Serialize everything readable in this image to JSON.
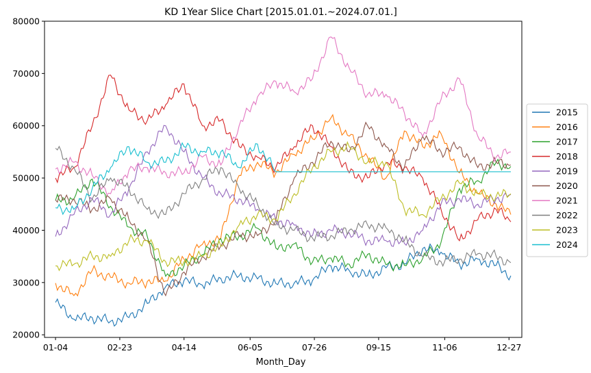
{
  "chart_data": {
    "type": "line",
    "title": "KD 1Year Slice Chart [2015.01.01.~2024.07.01.]",
    "xlabel": "Month_Day",
    "ylabel": "",
    "x_ticks": [
      "01-04",
      "02-23",
      "04-14",
      "06-05",
      "07-26",
      "09-15",
      "11-06",
      "12-27"
    ],
    "x_tick_index": [
      0,
      35,
      70,
      106,
      141,
      176,
      212,
      247
    ],
    "xlim": [
      -6,
      254
    ],
    "ylim": [
      19500,
      80000
    ],
    "y_ticks": [
      20000,
      30000,
      40000,
      50000,
      60000,
      70000,
      80000
    ],
    "legend_position": "center-right",
    "grid": false,
    "series": [
      {
        "name": "2015",
        "color": "#1f77b4",
        "x": [
          0,
          10,
          20,
          30,
          40,
          50,
          60,
          70,
          80,
          90,
          100,
          110,
          120,
          130,
          140,
          150,
          160,
          170,
          180,
          190,
          200,
          210,
          220,
          230,
          240,
          248
        ],
        "values": [
          26200,
          23000,
          23300,
          22600,
          23300,
          26000,
          29200,
          30400,
          29500,
          30800,
          31300,
          30700,
          29800,
          29900,
          30400,
          33200,
          32300,
          31300,
          32800,
          33600,
          36500,
          35800,
          33500,
          34500,
          33300,
          31300
        ]
      },
      {
        "name": "2016",
        "color": "#ff7f0e",
        "x": [
          0,
          10,
          20,
          30,
          40,
          50,
          60,
          70,
          80,
          90,
          100,
          110,
          120,
          130,
          140,
          150,
          160,
          170,
          180,
          190,
          200,
          210,
          220,
          230,
          240,
          248
        ],
        "values": [
          29900,
          27500,
          32300,
          31000,
          29900,
          30200,
          30300,
          34500,
          37300,
          38500,
          50500,
          53000,
          51000,
          54500,
          57500,
          61500,
          58000,
          54000,
          50000,
          59000,
          56000,
          58500,
          51000,
          47000,
          45000,
          43000
        ]
      },
      {
        "name": "2017",
        "color": "#2ca02c",
        "x": [
          0,
          10,
          20,
          30,
          40,
          50,
          60,
          70,
          80,
          90,
          100,
          110,
          120,
          130,
          140,
          150,
          160,
          170,
          180,
          190,
          200,
          210,
          220,
          230,
          240,
          248
        ],
        "values": [
          45700,
          46000,
          49800,
          44600,
          40600,
          38800,
          31200,
          33200,
          35300,
          38400,
          38900,
          40400,
          36600,
          37400,
          33900,
          34700,
          33500,
          35400,
          33400,
          33300,
          34600,
          37700,
          48000,
          49500,
          53000,
          52200
        ]
      },
      {
        "name": "2018",
        "color": "#d62728",
        "x": [
          0,
          10,
          20,
          30,
          40,
          50,
          60,
          70,
          80,
          90,
          100,
          110,
          120,
          130,
          140,
          150,
          160,
          170,
          180,
          190,
          200,
          210,
          220,
          230,
          240,
          248
        ],
        "values": [
          50000,
          52000,
          60000,
          69700,
          63000,
          61000,
          64000,
          68000,
          60000,
          61000,
          56000,
          54000,
          52000,
          56000,
          60000,
          56000,
          51000,
          50000,
          53000,
          52000,
          50000,
          44000,
          38000,
          42000,
          44000,
          41600
        ]
      },
      {
        "name": "2019",
        "color": "#9467bd",
        "x": [
          0,
          10,
          20,
          30,
          40,
          50,
          60,
          70,
          80,
          90,
          100,
          110,
          120,
          130,
          140,
          150,
          160,
          170,
          180,
          190,
          200,
          210,
          220,
          230,
          240,
          248
        ],
        "values": [
          38800,
          43000,
          46000,
          43000,
          48000,
          55000,
          60000,
          55000,
          50000,
          47000,
          46000,
          44000,
          42000,
          41000,
          39000,
          40000,
          39500,
          38000,
          38000,
          37500,
          40000,
          45000,
          46000,
          45000,
          46000,
          46800
        ]
      },
      {
        "name": "2020",
        "color": "#8c564b",
        "x": [
          0,
          10,
          20,
          30,
          40,
          50,
          60,
          70,
          80,
          90,
          100,
          110,
          120,
          130,
          140,
          150,
          160,
          170,
          180,
          190,
          200,
          210,
          220,
          230,
          240,
          248
        ],
        "values": [
          45800,
          46000,
          44000,
          46000,
          42000,
          38000,
          27500,
          32000,
          35000,
          37000,
          39000,
          39000,
          42000,
          50000,
          53000,
          57000,
          55000,
          60000,
          56000,
          52000,
          58000,
          55000,
          56000,
          52000,
          53000,
          52500
        ]
      },
      {
        "name": "2021",
        "color": "#e377c2",
        "x": [
          0,
          10,
          20,
          30,
          40,
          50,
          60,
          70,
          80,
          90,
          100,
          110,
          120,
          130,
          140,
          150,
          160,
          170,
          180,
          190,
          200,
          210,
          220,
          230,
          240,
          248
        ],
        "values": [
          51700,
          53000,
          50500,
          47000,
          51500,
          52000,
          51000,
          51000,
          54000,
          52500,
          60000,
          65500,
          68500,
          66500,
          69000,
          77000,
          71000,
          66000,
          66000,
          62500,
          58000,
          65000,
          69000,
          58000,
          54000,
          55000
        ]
      },
      {
        "name": "2022",
        "color": "#7f7f7f",
        "x": [
          0,
          10,
          20,
          30,
          40,
          50,
          60,
          70,
          80,
          90,
          100,
          110,
          120,
          130,
          140,
          150,
          160,
          170,
          180,
          190,
          200,
          210,
          220,
          230,
          240,
          248
        ],
        "values": [
          55700,
          52000,
          46000,
          50000,
          48000,
          44000,
          43000,
          47000,
          49800,
          52000,
          48000,
          45000,
          41000,
          40000,
          38500,
          39000,
          40000,
          41000,
          40500,
          38000,
          35000,
          34000,
          34500,
          35500,
          35000,
          33800
        ]
      },
      {
        "name": "2023",
        "color": "#bcbd22",
        "x": [
          0,
          10,
          20,
          30,
          40,
          50,
          60,
          70,
          80,
          90,
          100,
          110,
          120,
          130,
          140,
          150,
          160,
          170,
          180,
          190,
          200,
          210,
          220,
          230,
          240,
          248
        ],
        "values": [
          33200,
          33500,
          35000,
          35000,
          38000,
          38000,
          34000,
          34000,
          35000,
          37000,
          41000,
          43000,
          42000,
          47000,
          52000,
          55000,
          56000,
          53000,
          53000,
          44000,
          43000,
          46000,
          49000,
          47000,
          46500,
          47000
        ]
      },
      {
        "name": "2024",
        "color": "#17becf",
        "x": [
          0,
          10,
          20,
          30,
          40,
          50,
          60,
          70,
          80,
          90,
          100,
          110,
          120,
          121,
          248
        ],
        "values": [
          44300,
          44000,
          48000,
          52000,
          56000,
          53000,
          53000,
          56000,
          55000,
          55000,
          52000,
          56500,
          51200,
          51200,
          51200
        ]
      }
    ]
  }
}
